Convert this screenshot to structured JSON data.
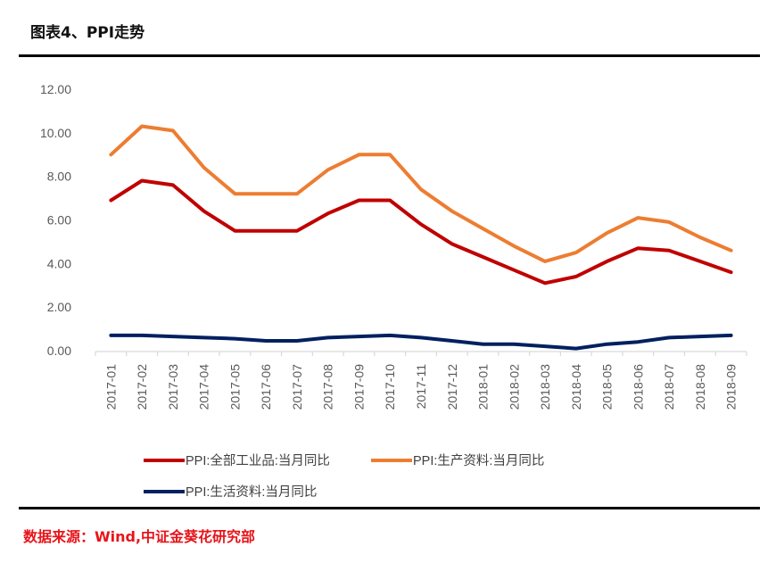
{
  "header": {
    "title": "图表4、PPI走势"
  },
  "footer": {
    "source": "数据来源：Wind,中证金葵花研究部"
  },
  "chart_data": {
    "type": "line",
    "title": "图表4、PPI走势",
    "xlabel": "",
    "ylabel": "",
    "ylim": [
      0,
      12
    ],
    "yticks": [
      "0.00",
      "2.00",
      "4.00",
      "6.00",
      "8.00",
      "10.00",
      "12.00"
    ],
    "grid": false,
    "legend_position": "bottom",
    "categories": [
      "2017-01",
      "2017-02",
      "2017-03",
      "2017-04",
      "2017-05",
      "2017-06",
      "2017-07",
      "2017-08",
      "2017-09",
      "2017-10",
      "2017-11",
      "2017-12",
      "2018-01",
      "2018-02",
      "2018-03",
      "2018-04",
      "2018-05",
      "2018-06",
      "2018-07",
      "2018-08",
      "2018-09"
    ],
    "series": [
      {
        "name": "PPI:全部工业品:当月同比",
        "color": "#c00000",
        "values": [
          6.9,
          7.8,
          7.6,
          6.4,
          5.5,
          5.5,
          5.5,
          6.3,
          6.9,
          6.9,
          5.8,
          4.9,
          4.3,
          3.7,
          3.1,
          3.4,
          4.1,
          4.7,
          4.6,
          4.1,
          3.6
        ]
      },
      {
        "name": "PPI:生产资料:当月同比",
        "color": "#ed7d31",
        "values": [
          9.0,
          10.3,
          10.1,
          8.4,
          7.2,
          7.2,
          7.2,
          8.3,
          9.0,
          9.0,
          7.4,
          6.4,
          5.6,
          4.8,
          4.1,
          4.5,
          5.4,
          6.1,
          5.9,
          5.2,
          4.6
        ]
      },
      {
        "name": "PPI:生活资料:当月同比",
        "color": "#002060",
        "values": [
          0.7,
          0.7,
          0.65,
          0.6,
          0.55,
          0.45,
          0.45,
          0.6,
          0.65,
          0.7,
          0.6,
          0.45,
          0.3,
          0.3,
          0.2,
          0.1,
          0.3,
          0.4,
          0.6,
          0.65,
          0.7
        ]
      }
    ]
  }
}
